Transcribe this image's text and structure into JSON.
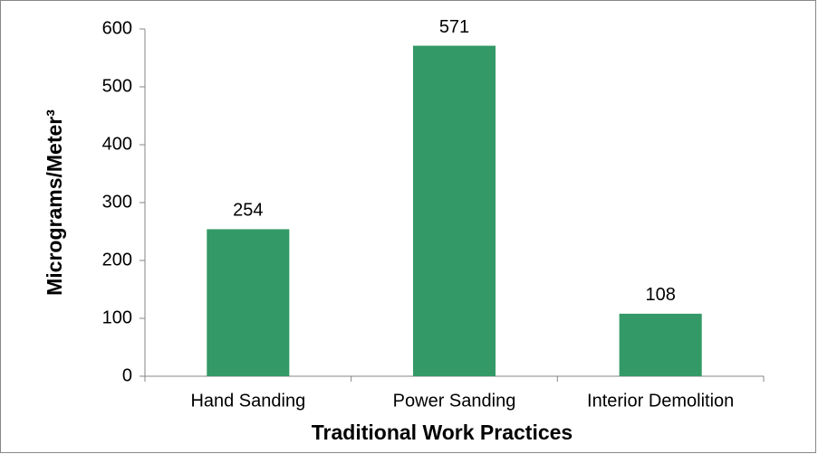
{
  "chart_data": {
    "type": "bar",
    "x_label": "Traditional Work Practices",
    "y_label": "Micrograms/Meter³",
    "categories": [
      "Hand Sanding",
      "Power Sanding",
      "Interior Demolition"
    ],
    "values": [
      254,
      571,
      108
    ],
    "color": "#339966",
    "ylim": [
      0,
      600
    ],
    "yticks": [
      0,
      100,
      200,
      300,
      400,
      500,
      600
    ],
    "grid": false
  }
}
